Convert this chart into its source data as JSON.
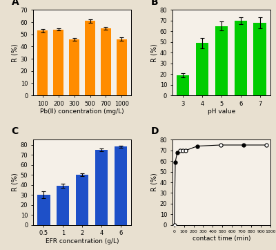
{
  "A": {
    "x": [
      100,
      200,
      300,
      500,
      700,
      1000
    ],
    "y": [
      53,
      54,
      46,
      61,
      55,
      46
    ],
    "yerr": [
      1.5,
      1.0,
      1.0,
      1.5,
      1.0,
      1.5
    ],
    "color": "#FF8C00",
    "xlabel": "Pb(II) concentration (mg/L)",
    "ylabel": "R (%)",
    "ylim": [
      0,
      70
    ],
    "yticks": [
      0,
      10,
      20,
      30,
      40,
      50,
      60,
      70
    ],
    "label": "A"
  },
  "B": {
    "x": [
      3,
      4,
      5,
      6,
      7
    ],
    "y": [
      19,
      49,
      65,
      70,
      68
    ],
    "yerr": [
      2.0,
      5.0,
      4.0,
      3.0,
      5.0
    ],
    "color": "#00CC00",
    "xlabel": "pH value",
    "ylabel": "R (%)",
    "ylim": [
      0,
      80
    ],
    "yticks": [
      0,
      10,
      20,
      30,
      40,
      50,
      60,
      70,
      80
    ],
    "label": "B"
  },
  "C": {
    "x": [
      "0.5",
      "1",
      "2",
      "4",
      "6"
    ],
    "y": [
      30,
      39,
      50,
      75,
      78
    ],
    "yerr": [
      3.5,
      2.0,
      1.5,
      1.5,
      1.0
    ],
    "color": "#1E50C8",
    "xlabel": "EFR concentration (g/L)",
    "ylabel": "R (%)",
    "ylim": [
      0,
      85
    ],
    "yticks": [
      0,
      10,
      20,
      30,
      40,
      50,
      60,
      70,
      80
    ],
    "label": "C"
  },
  "D": {
    "x": [
      0,
      10,
      30,
      60,
      90,
      120,
      240,
      480,
      720,
      960
    ],
    "y": [
      0,
      59,
      68,
      70,
      70,
      70,
      74,
      75,
      75,
      75
    ],
    "xlabel": "contact time (min)",
    "ylabel": "R (%)",
    "ylim": [
      0,
      80
    ],
    "yticks": [
      0,
      10,
      20,
      30,
      40,
      50,
      60,
      70,
      80
    ],
    "xticks": [
      0,
      100,
      200,
      300,
      400,
      500,
      600,
      700,
      800,
      900,
      1000
    ],
    "xlim": [
      -20,
      1000
    ],
    "label": "D",
    "open_indices": [
      0,
      3,
      4,
      5,
      7,
      9
    ],
    "filled_indices": [
      1,
      2,
      6,
      8
    ]
  },
  "fig_bg": "#E8E0D0",
  "ax_bg": "#F5F0E8"
}
